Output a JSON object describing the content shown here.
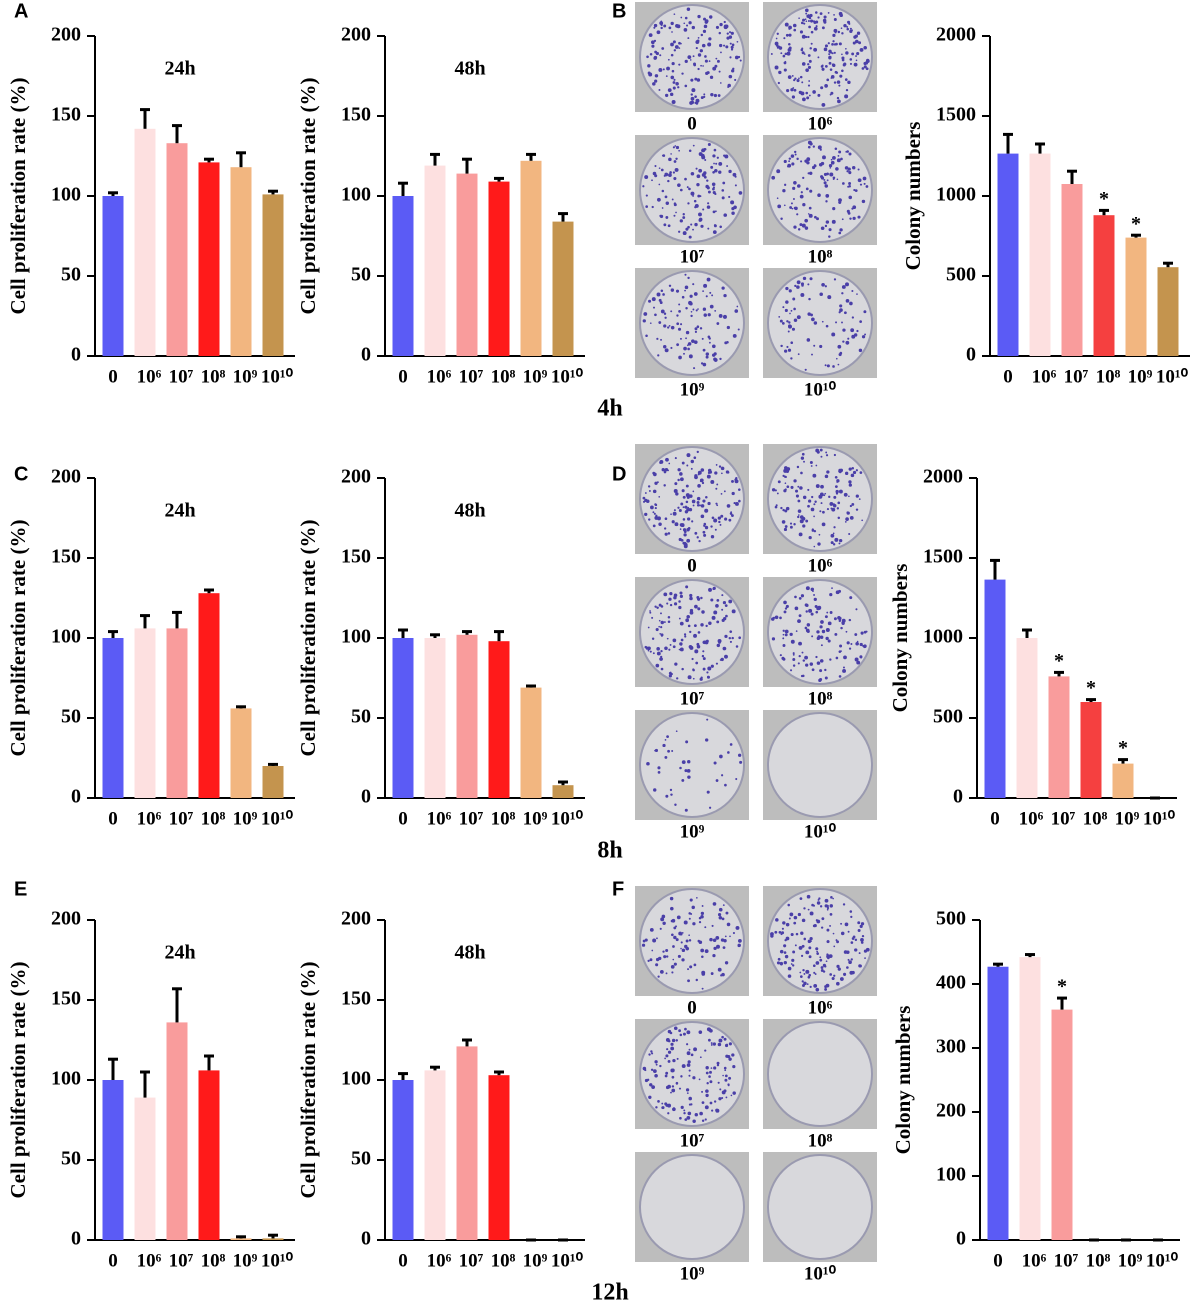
{
  "panel_letters": [
    "A",
    "B",
    "C",
    "D",
    "E",
    "F"
  ],
  "row_labels": [
    "4h",
    "8h",
    "12h"
  ],
  "dish_labels": [
    [
      "0",
      "10⁶",
      "10⁷",
      "10⁸",
      "10⁹",
      "10¹⁰"
    ],
    [
      "0",
      "10⁶",
      "10⁷",
      "10⁸",
      "10⁹",
      "10¹⁰"
    ],
    [
      "0",
      "10⁶",
      "10⁷",
      "10⁸",
      "10⁹",
      "10¹⁰"
    ]
  ],
  "chart_data": [
    {
      "type": "bar",
      "title": "24h",
      "y_label": "Cell proliferation rate (%)",
      "categories": [
        "0",
        "10⁶",
        "10⁷",
        "10⁸",
        "10⁹",
        "10¹⁰"
      ],
      "values": [
        100,
        142,
        133,
        121,
        118,
        101
      ],
      "errors": [
        2,
        12,
        11,
        2,
        9,
        2
      ],
      "colors": [
        "#5b5bf5",
        "#fde0e0",
        "#f99c9c",
        "#ff1a1a",
        "#f2b680",
        "#c4944e"
      ],
      "ylim": [
        0,
        200
      ],
      "yticks": [
        0,
        50,
        100,
        150,
        200
      ]
    },
    {
      "type": "bar",
      "title": "48h",
      "y_label": "Cell proliferation rate (%)",
      "categories": [
        "0",
        "10⁶",
        "10⁷",
        "10⁸",
        "10⁹",
        "10¹⁰"
      ],
      "values": [
        100,
        119,
        114,
        109,
        122,
        84
      ],
      "errors": [
        8,
        7,
        9,
        2,
        4,
        5
      ],
      "colors": [
        "#5b5bf5",
        "#fde0e0",
        "#f99c9c",
        "#ff1a1a",
        "#f2b680",
        "#c4944e"
      ],
      "ylim": [
        0,
        200
      ],
      "yticks": [
        0,
        50,
        100,
        150,
        200
      ]
    },
    {
      "type": "bar",
      "y_label": "Colony numbers",
      "categories": [
        "0",
        "10⁶",
        "10⁷",
        "10⁸",
        "10⁹",
        "10¹⁰"
      ],
      "values": [
        1265,
        1265,
        1075,
        880,
        740,
        555
      ],
      "errors": [
        120,
        60,
        80,
        30,
        15,
        25
      ],
      "markers": [
        null,
        null,
        null,
        "*",
        "*",
        null
      ],
      "colors": [
        "#5b5bf5",
        "#fde0e0",
        "#f99c9c",
        "#f54040",
        "#f2b680",
        "#c4944e"
      ],
      "ylim": [
        0,
        2000
      ],
      "yticks": [
        0,
        500,
        1000,
        1500,
        2000
      ]
    },
    {
      "type": "bar",
      "title": "24h",
      "y_label": "Cell proliferation rate (%)",
      "categories": [
        "0",
        "10⁶",
        "10⁷",
        "10⁸",
        "10⁹",
        "10¹⁰"
      ],
      "values": [
        100,
        106,
        106,
        128,
        56,
        20
      ],
      "errors": [
        4,
        8,
        10,
        2,
        1,
        1
      ],
      "colors": [
        "#5b5bf5",
        "#fde0e0",
        "#f99c9c",
        "#ff1a1a",
        "#f2b680",
        "#c4944e"
      ],
      "ylim": [
        0,
        200
      ],
      "yticks": [
        0,
        50,
        100,
        150,
        200
      ]
    },
    {
      "type": "bar",
      "title": "48h",
      "y_label": "Cell proliferation rate (%)",
      "categories": [
        "0",
        "10⁶",
        "10⁷",
        "10⁸",
        "10⁹",
        "10¹⁰"
      ],
      "values": [
        100,
        100,
        102,
        98,
        69,
        8
      ],
      "errors": [
        5,
        2,
        2,
        6,
        1,
        2
      ],
      "colors": [
        "#5b5bf5",
        "#fde0e0",
        "#f99c9c",
        "#ff1a1a",
        "#f2b680",
        "#c4944e"
      ],
      "ylim": [
        0,
        200
      ],
      "yticks": [
        0,
        50,
        100,
        150,
        200
      ]
    },
    {
      "type": "bar",
      "y_label": "Colony numbers",
      "categories": [
        "0",
        "10⁶",
        "10⁷",
        "10⁸",
        "10⁹",
        "10¹⁰"
      ],
      "values": [
        1365,
        1000,
        760,
        600,
        215,
        0
      ],
      "errors": [
        120,
        50,
        25,
        15,
        25,
        0
      ],
      "markers": [
        null,
        null,
        "*",
        "*",
        "*",
        null
      ],
      "colors": [
        "#5b5bf5",
        "#fde0e0",
        "#f99c9c",
        "#f54040",
        "#f2b680",
        "#c4944e"
      ],
      "ylim": [
        0,
        2000
      ],
      "yticks": [
        0,
        500,
        1000,
        1500,
        2000
      ]
    },
    {
      "type": "bar",
      "title": "24h",
      "y_label": "Cell proliferation rate (%)",
      "categories": [
        "0",
        "10⁶",
        "10⁷",
        "10⁸",
        "10⁹",
        "10¹⁰"
      ],
      "values": [
        100,
        89,
        136,
        106,
        1,
        1
      ],
      "errors": [
        13,
        16,
        21,
        9,
        1,
        2
      ],
      "colors": [
        "#5b5bf5",
        "#fde0e0",
        "#f99c9c",
        "#ff1a1a",
        "#f2b680",
        "#c4944e"
      ],
      "ylim": [
        0,
        200
      ],
      "yticks": [
        0,
        50,
        100,
        150,
        200
      ]
    },
    {
      "type": "bar",
      "title": "48h",
      "y_label": "Cell proliferation rate (%)",
      "categories": [
        "0",
        "10⁶",
        "10⁷",
        "10⁸",
        "10⁹",
        "10¹⁰"
      ],
      "values": [
        100,
        106,
        121,
        103,
        0,
        0
      ],
      "errors": [
        4,
        2,
        4,
        2,
        0,
        0
      ],
      "colors": [
        "#5b5bf5",
        "#fde0e0",
        "#f99c9c",
        "#ff1a1a",
        "#f2b680",
        "#c4944e"
      ],
      "ylim": [
        0,
        200
      ],
      "yticks": [
        0,
        50,
        100,
        150,
        200
      ]
    },
    {
      "type": "bar",
      "y_label": "Colony numbers",
      "categories": [
        "0",
        "10⁶",
        "10⁷",
        "10⁸",
        "10⁹",
        "10¹⁰"
      ],
      "values": [
        427,
        442,
        360,
        0,
        0,
        0
      ],
      "errors": [
        4,
        4,
        18,
        0,
        0,
        0
      ],
      "markers": [
        null,
        null,
        "*",
        null,
        null,
        null
      ],
      "colors": [
        "#5b5bf5",
        "#fde0e0",
        "#f99c9c",
        "#f54040",
        "#f2b680",
        "#c4944e"
      ],
      "ylim": [
        0,
        500
      ],
      "yticks": [
        0,
        100,
        200,
        300,
        400,
        500
      ]
    }
  ]
}
